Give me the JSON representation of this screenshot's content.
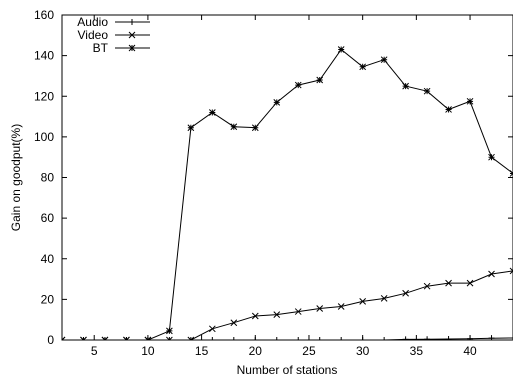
{
  "chart_data": {
    "type": "line",
    "xlabel": "Number of stations",
    "ylabel": "Gain on goodput(%)",
    "xlim": [
      2,
      44
    ],
    "ylim": [
      0,
      160
    ],
    "xticks": [
      5,
      10,
      15,
      20,
      25,
      30,
      35,
      40
    ],
    "yticks": [
      0,
      20,
      40,
      60,
      80,
      100,
      120,
      140,
      160
    ],
    "grid": false,
    "legend_position": "top-left",
    "series": [
      {
        "name": "Audio",
        "marker": "plus",
        "x": [
          2,
          4,
          6,
          8,
          10,
          12,
          14,
          16,
          18,
          20,
          22,
          24,
          26,
          28,
          30,
          32,
          34,
          36,
          38,
          40,
          42,
          44
        ],
        "y": [
          0,
          0,
          0,
          0,
          0,
          0,
          0,
          0,
          0,
          0,
          0,
          0,
          0,
          0,
          0,
          0,
          0.3,
          0.4,
          0.5,
          0.6,
          0.9,
          1
        ]
      },
      {
        "name": "Video",
        "marker": "cross",
        "x": [
          2,
          4,
          6,
          8,
          10,
          12,
          14,
          16,
          18,
          20,
          22,
          24,
          26,
          28,
          30,
          32,
          34,
          36,
          38,
          40,
          42,
          44
        ],
        "y": [
          0,
          0,
          0,
          0,
          0,
          0,
          0,
          5.5,
          8.5,
          11.8,
          12.5,
          14,
          15.5,
          16.5,
          19,
          20.5,
          23,
          26.5,
          28,
          28,
          32.5,
          34
        ]
      },
      {
        "name": "BT",
        "marker": "star",
        "x": [
          2,
          4,
          6,
          8,
          10,
          12,
          14,
          16,
          18,
          20,
          22,
          24,
          26,
          28,
          30,
          32,
          34,
          36,
          38,
          40,
          42,
          44
        ],
        "y": [
          0,
          0,
          0,
          0,
          0,
          4.5,
          104.5,
          112,
          105,
          104.5,
          117,
          125.5,
          128,
          143,
          134.5,
          138,
          125,
          122.5,
          113.5,
          117.5,
          90,
          82
        ]
      }
    ]
  }
}
